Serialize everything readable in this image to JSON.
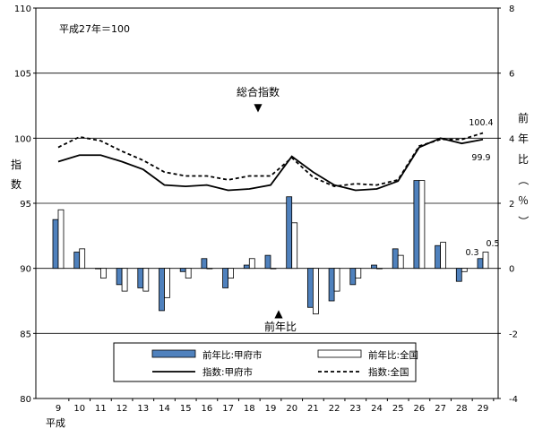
{
  "chart_data": {
    "type": "bar+line",
    "base_label": "平成27年＝100",
    "xlabel": "平成",
    "ylabel_left": "指数",
    "ylabel_right": "前年比（％）",
    "ylim_left": [
      80,
      110
    ],
    "ylim_right": [
      -4,
      8
    ],
    "grid": true,
    "legend_position": "bottom",
    "categories": [
      "9",
      "10",
      "11",
      "12",
      "13",
      "14",
      "15",
      "16",
      "17",
      "18",
      "19",
      "20",
      "21",
      "22",
      "23",
      "24",
      "25",
      "26",
      "27",
      "28",
      "29"
    ],
    "series": [
      {
        "name": "前年比:甲府市",
        "kind": "bar",
        "axis": "right",
        "color": "#4f81bd",
        "values": [
          1.5,
          0.5,
          0.0,
          -0.5,
          -0.6,
          -1.3,
          -0.1,
          0.3,
          -0.6,
          0.1,
          0.4,
          2.2,
          -1.2,
          -1.0,
          -0.5,
          0.1,
          0.6,
          2.7,
          0.7,
          -0.4,
          0.3
        ]
      },
      {
        "name": "前年比:全国",
        "kind": "bar",
        "axis": "right",
        "color": "#ffffff",
        "values": [
          1.8,
          0.6,
          -0.3,
          -0.7,
          -0.7,
          -0.9,
          -0.3,
          0.0,
          -0.3,
          0.3,
          0.0,
          1.4,
          -1.4,
          -0.7,
          -0.3,
          0.0,
          0.4,
          2.7,
          0.8,
          -0.1,
          0.5
        ]
      },
      {
        "name": "指数:甲府市",
        "kind": "line",
        "axis": "left",
        "color": "#000000",
        "values": [
          98.2,
          98.7,
          98.7,
          98.2,
          97.6,
          96.4,
          96.3,
          96.4,
          96.0,
          96.1,
          96.4,
          98.6,
          97.4,
          96.4,
          96.0,
          96.1,
          96.7,
          99.3,
          100.0,
          99.6,
          99.9
        ]
      },
      {
        "name": "指数:全国",
        "kind": "line",
        "axis": "left",
        "dash": true,
        "color": "#000000",
        "values": [
          99.3,
          100.1,
          99.8,
          99.0,
          98.3,
          97.4,
          97.1,
          97.1,
          96.8,
          97.1,
          97.1,
          98.5,
          97.0,
          96.3,
          96.5,
          96.4,
          96.8,
          99.4,
          99.9,
          99.9,
          100.4
        ]
      }
    ],
    "left_ticks": [
      "80",
      "85",
      "90",
      "95",
      "100",
      "105",
      "110"
    ],
    "right_ticks": [
      "-4",
      "-2",
      "0",
      "2",
      "4",
      "6",
      "8"
    ],
    "annotations": {
      "index_label": "総合指数",
      "index_arrow": "▼",
      "yoy_label": "前年比",
      "yoy_arrow": "▲"
    },
    "data_labels": [
      {
        "series": "指数:全国",
        "category": "29",
        "text": "100.4"
      },
      {
        "series": "指数:甲府市",
        "category": "29",
        "text": "99.9"
      },
      {
        "series": "前年比:甲府市",
        "category": "29",
        "text": "0.3"
      },
      {
        "series": "前年比:全国",
        "category": "29",
        "text": "0.5"
      }
    ]
  }
}
